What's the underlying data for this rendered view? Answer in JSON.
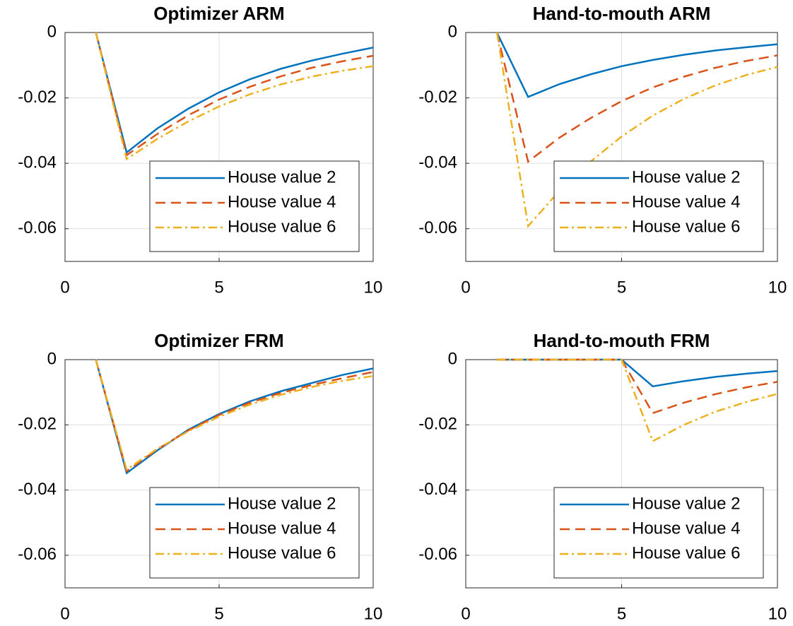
{
  "chart_data": [
    {
      "type": "line",
      "title": "Optimizer ARM",
      "x": [
        1,
        2,
        3,
        4,
        5,
        6,
        7,
        8,
        9,
        10
      ],
      "xlim": [
        0,
        10
      ],
      "xticks": [
        0,
        5,
        10
      ],
      "ylim": [
        -0.07,
        0
      ],
      "yticks": [
        -0.06,
        -0.04,
        -0.02,
        0
      ],
      "grid": true,
      "legend": "southeast",
      "series": [
        {
          "name": "House value 2",
          "color": "#0072bd",
          "line_style": "solid",
          "values": [
            0,
            -0.0367,
            -0.0293,
            -0.0233,
            -0.0183,
            -0.0143,
            -0.0111,
            -0.0086,
            -0.0065,
            -0.0046
          ]
        },
        {
          "name": "House value 4",
          "color": "#d95319",
          "line_style": "dashed",
          "values": [
            0,
            -0.0375,
            -0.031,
            -0.0253,
            -0.0205,
            -0.0166,
            -0.0134,
            -0.0108,
            -0.0088,
            -0.0071
          ]
        },
        {
          "name": "House value 6",
          "color": "#edb120",
          "line_style": "dashdot",
          "values": [
            0,
            -0.0387,
            -0.0325,
            -0.0272,
            -0.0226,
            -0.0189,
            -0.0159,
            -0.0135,
            -0.0117,
            -0.0103
          ]
        }
      ]
    },
    {
      "type": "line",
      "title": "Hand-to-mouth ARM",
      "x": [
        1,
        2,
        3,
        4,
        5,
        6,
        7,
        8,
        9,
        10
      ],
      "xlim": [
        0,
        10
      ],
      "xticks": [
        0,
        5,
        10
      ],
      "ylim": [
        -0.07,
        0
      ],
      "yticks": [
        -0.06,
        -0.04,
        -0.02,
        0
      ],
      "grid": true,
      "legend": "southeast",
      "series": [
        {
          "name": "House value 2",
          "color": "#0072bd",
          "line_style": "solid",
          "values": [
            0,
            -0.0197,
            -0.0158,
            -0.0128,
            -0.0103,
            -0.0084,
            -0.0068,
            -0.0055,
            -0.0045,
            -0.0036
          ]
        },
        {
          "name": "House value 4",
          "color": "#d95319",
          "line_style": "dashed",
          "values": [
            0,
            -0.0395,
            -0.0322,
            -0.0262,
            -0.021,
            -0.0168,
            -0.0135,
            -0.0108,
            -0.0087,
            -0.007
          ]
        },
        {
          "name": "House value 6",
          "color": "#edb120",
          "line_style": "dashdot",
          "values": [
            0,
            -0.0592,
            -0.0485,
            -0.0395,
            -0.0318,
            -0.0254,
            -0.0203,
            -0.0162,
            -0.013,
            -0.0105
          ]
        }
      ]
    },
    {
      "type": "line",
      "title": "Optimizer FRM",
      "x": [
        1,
        2,
        3,
        4,
        5,
        6,
        7,
        8,
        9,
        10
      ],
      "xlim": [
        0,
        10
      ],
      "xticks": [
        0,
        5,
        10
      ],
      "ylim": [
        -0.07,
        0
      ],
      "yticks": [
        -0.06,
        -0.04,
        -0.02,
        0
      ],
      "grid": true,
      "legend": "southeast",
      "series": [
        {
          "name": "House value 2",
          "color": "#0072bd",
          "line_style": "solid",
          "values": [
            0,
            -0.0348,
            -0.0278,
            -0.0215,
            -0.0167,
            -0.0128,
            -0.0097,
            -0.0072,
            -0.0047,
            -0.0027
          ]
        },
        {
          "name": "House value 4",
          "color": "#d95319",
          "line_style": "dashed",
          "values": [
            0,
            -0.0342,
            -0.0275,
            -0.0217,
            -0.017,
            -0.0132,
            -0.0102,
            -0.0078,
            -0.0057,
            -0.0038
          ]
        },
        {
          "name": "House value 6",
          "color": "#edb120",
          "line_style": "dashdot",
          "values": [
            0,
            -0.0337,
            -0.0273,
            -0.022,
            -0.0175,
            -0.0138,
            -0.0108,
            -0.0084,
            -0.0065,
            -0.005
          ]
        }
      ]
    },
    {
      "type": "line",
      "title": "Hand-to-mouth FRM",
      "x": [
        1,
        2,
        3,
        4,
        5,
        6,
        7,
        8,
        9,
        10
      ],
      "xlim": [
        0,
        10
      ],
      "xticks": [
        0,
        5,
        10
      ],
      "ylim": [
        -0.07,
        0
      ],
      "yticks": [
        -0.06,
        -0.04,
        -0.02,
        0
      ],
      "grid": true,
      "legend": "southeast",
      "series": [
        {
          "name": "House value 2",
          "color": "#0072bd",
          "line_style": "solid",
          "values": [
            0,
            0,
            0,
            0,
            0,
            -0.0082,
            -0.0066,
            -0.0053,
            -0.0043,
            -0.0035
          ]
        },
        {
          "name": "House value 4",
          "color": "#d95319",
          "line_style": "dashed",
          "values": [
            0,
            0,
            0,
            0,
            0,
            -0.0164,
            -0.0132,
            -0.0106,
            -0.0085,
            -0.0068
          ]
        },
        {
          "name": "House value 6",
          "color": "#edb120",
          "line_style": "dashdot",
          "values": [
            0,
            0,
            0,
            0,
            0,
            -0.025,
            -0.02,
            -0.016,
            -0.013,
            -0.0105
          ]
        }
      ]
    }
  ]
}
